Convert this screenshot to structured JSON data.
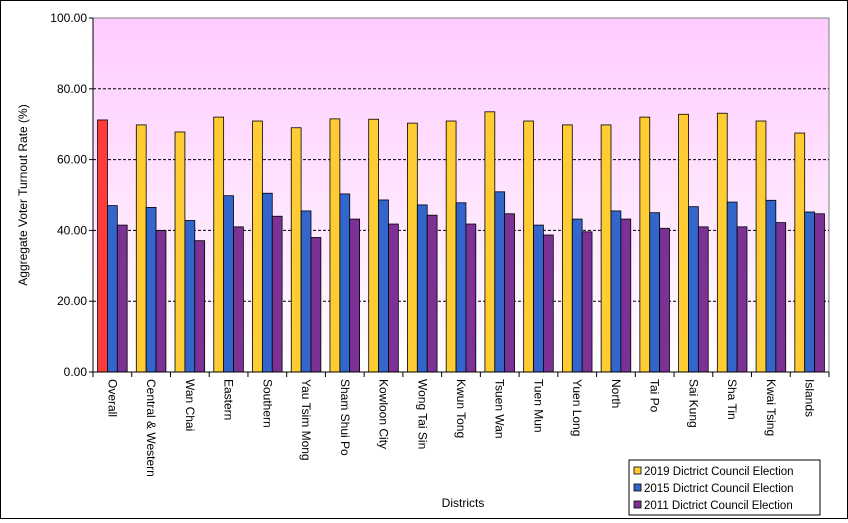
{
  "chart_data": {
    "type": "bar",
    "ylabel": "Aggregate Voter Turnout Rate (%)",
    "xlabel": "Districts",
    "ylim": [
      0,
      100
    ],
    "yticks": [
      "0.00",
      "20.00",
      "40.00",
      "60.00",
      "80.00",
      "100.00"
    ],
    "grid": true,
    "legend_position": "bottom-right",
    "categories": [
      "Overall",
      "Central & Western",
      "Wan Chai",
      "Eastern",
      "Southern",
      "Yau Tsim Mong",
      "Sham Shui Po",
      "Kowloon City",
      "Wong Tai Sin",
      "Kwun Tong",
      "Tsuen Wan",
      "Tuen Mun",
      "Yuen Long",
      "North",
      "Tai Po",
      "Sai Kung",
      "Sha Tin",
      "Kwai Tsing",
      "Islands"
    ],
    "series": [
      {
        "name": "2019 Dictrict Council Election",
        "color": "#FFCC33",
        "values": [
          71.2,
          69.8,
          67.8,
          72.0,
          70.9,
          69.0,
          71.5,
          71.4,
          70.3,
          70.9,
          73.5,
          70.9,
          69.8,
          69.8,
          72.0,
          72.8,
          73.1,
          70.9,
          67.5
        ]
      },
      {
        "name": "2015 Dictrict Council Election",
        "color": "#3366CC",
        "values": [
          47.0,
          46.5,
          42.8,
          49.8,
          50.5,
          45.5,
          50.3,
          48.6,
          47.2,
          47.8,
          50.9,
          41.5,
          43.2,
          45.5,
          45.0,
          46.7,
          48.0,
          48.5,
          45.2
        ]
      },
      {
        "name": "2011 Dictrict Council Election",
        "color": "#7B3294",
        "values": [
          41.5,
          40.0,
          37.1,
          41.0,
          44.0,
          38.0,
          43.2,
          41.8,
          44.3,
          41.8,
          44.7,
          38.7,
          39.6,
          43.2,
          40.6,
          41.0,
          41.0,
          42.2,
          44.7
        ]
      }
    ],
    "highlight": {
      "category_index": 0,
      "series_index": 0,
      "color": "#FF3B3B"
    }
  }
}
